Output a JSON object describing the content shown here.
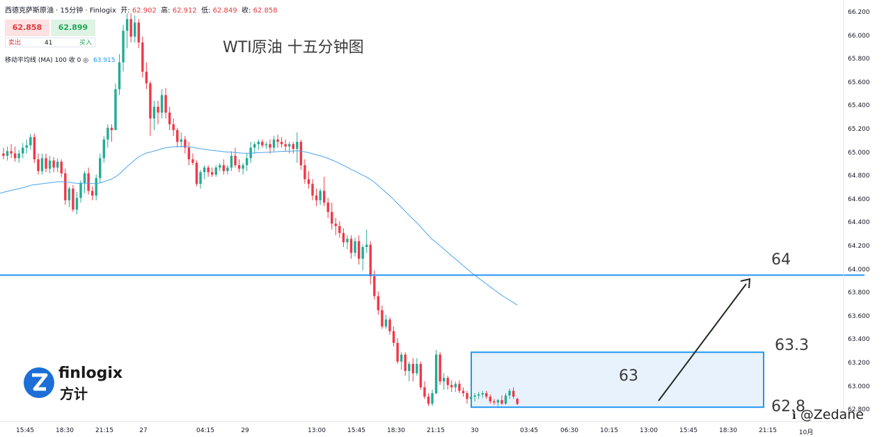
{
  "header": {
    "symbol": "西德克萨斯原油 · 15分钟 · Finlogix",
    "open_label": "开:",
    "open": "62.902",
    "high_label": "高:",
    "high": "62.912",
    "low_label": "低:",
    "low": "62.849",
    "close_label": "收:",
    "close": "62.858"
  },
  "trade": {
    "sell_price": "62.858",
    "buy_price": "62.899",
    "sell_label": "卖出",
    "buy_label": "买入",
    "quantity": "41"
  },
  "indicator": {
    "label": "移动平均线 (MA)",
    "params": "100 收 0",
    "value": "63.915"
  },
  "title": "WTI原油 十五分钟图",
  "annotations": {
    "level_64": "64",
    "level_633": "63.3",
    "level_63": "63",
    "level_628": "62.8"
  },
  "logo": {
    "name": "finlogix",
    "cn": "方计"
  },
  "watermark": "@Zedane",
  "colors": {
    "up": "#22ab94",
    "down": "#f23645",
    "ma": "#4aa3e8",
    "line": "#2196f3",
    "box_fill": "#e8f2fc"
  },
  "chart_data": {
    "type": "candlestick",
    "title": "WTI原油 十五分钟图",
    "y_ticks": [
      "66.200",
      "66.000",
      "65.800",
      "65.600",
      "65.400",
      "65.200",
      "65.000",
      "64.800",
      "64.600",
      "64.400",
      "64.200",
      "64.000",
      "63.800",
      "63.600",
      "63.400",
      "63.200",
      "63.000",
      "62.800"
    ],
    "x_ticks": [
      "15:45",
      "18:30",
      "21:15",
      "27",
      "04:15",
      "29",
      "13:00",
      "15:45",
      "18:30",
      "21:15",
      "30",
      "03:45",
      "06:30",
      "10:15",
      "13:00",
      "15:45",
      "18:30",
      "21:15",
      "10月"
    ],
    "horizontal_line": 63.96,
    "zone": {
      "top": 63.3,
      "bottom": 62.83
    },
    "moving_average": {
      "period": 100,
      "last": 63.915
    },
    "candles": [
      [
        65.0,
        65.05,
        64.95,
        64.98
      ],
      [
        64.98,
        65.06,
        64.94,
        65.02
      ],
      [
        65.02,
        65.08,
        64.96,
        65.0
      ],
      [
        65.0,
        65.06,
        64.93,
        64.96
      ],
      [
        64.96,
        65.03,
        64.92,
        65.0
      ],
      [
        65.0,
        65.09,
        64.96,
        65.05
      ],
      [
        65.05,
        65.12,
        65.0,
        65.07
      ],
      [
        65.07,
        65.17,
        65.03,
        65.14
      ],
      [
        65.14,
        65.17,
        64.92,
        64.95
      ],
      [
        64.95,
        65.0,
        64.82,
        64.85
      ],
      [
        64.85,
        65.0,
        64.82,
        64.96
      ],
      [
        64.96,
        65.0,
        64.84,
        64.87
      ],
      [
        64.87,
        64.98,
        64.83,
        64.94
      ],
      [
        64.94,
        64.97,
        64.84,
        64.88
      ],
      [
        64.88,
        64.96,
        64.84,
        64.93
      ],
      [
        64.93,
        64.95,
        64.8,
        64.83
      ],
      [
        64.83,
        64.87,
        64.56,
        64.6
      ],
      [
        64.6,
        64.72,
        64.54,
        64.7
      ],
      [
        64.7,
        64.73,
        64.5,
        64.52
      ],
      [
        64.52,
        64.67,
        64.48,
        64.62
      ],
      [
        64.62,
        64.77,
        64.58,
        64.75
      ],
      [
        64.75,
        64.85,
        64.66,
        64.83
      ],
      [
        64.83,
        64.88,
        64.65,
        64.68
      ],
      [
        64.68,
        64.72,
        64.6,
        64.64
      ],
      [
        64.64,
        64.82,
        64.6,
        64.79
      ],
      [
        64.79,
        65.0,
        64.75,
        64.96
      ],
      [
        64.96,
        65.15,
        64.92,
        65.12
      ],
      [
        65.12,
        65.25,
        65.05,
        65.22
      ],
      [
        65.22,
        65.25,
        65.1,
        65.2
      ],
      [
        65.2,
        65.6,
        65.2,
        65.55
      ],
      [
        65.55,
        65.85,
        65.5,
        65.78
      ],
      [
        65.78,
        66.1,
        65.7,
        66.05
      ],
      [
        66.05,
        66.2,
        65.9,
        66.15
      ],
      [
        66.15,
        66.2,
        65.95,
        66.0
      ],
      [
        66.0,
        66.18,
        65.95,
        66.12
      ],
      [
        66.12,
        66.15,
        65.9,
        65.95
      ],
      [
        65.95,
        66.0,
        65.65,
        65.7
      ],
      [
        65.7,
        65.78,
        65.55,
        65.6
      ],
      [
        65.6,
        65.62,
        65.15,
        65.3
      ],
      [
        65.3,
        65.45,
        65.2,
        65.4
      ],
      [
        65.4,
        65.45,
        65.25,
        65.35
      ],
      [
        65.35,
        65.55,
        65.3,
        65.5
      ],
      [
        65.5,
        65.56,
        65.3,
        65.35
      ],
      [
        65.35,
        65.4,
        65.2,
        65.25
      ],
      [
        65.25,
        65.3,
        65.15,
        65.2
      ],
      [
        65.2,
        65.22,
        65.05,
        65.1
      ],
      [
        65.1,
        65.18,
        65.05,
        65.12
      ],
      [
        65.12,
        65.15,
        65.0,
        65.05
      ],
      [
        65.05,
        65.1,
        64.9,
        64.95
      ],
      [
        64.95,
        65.0,
        64.9,
        64.92
      ],
      [
        64.92,
        64.94,
        64.72,
        64.74
      ],
      [
        64.74,
        64.86,
        64.7,
        64.84
      ],
      [
        64.84,
        64.9,
        64.78,
        64.88
      ],
      [
        64.88,
        64.9,
        64.8,
        64.84
      ],
      [
        64.84,
        64.88,
        64.8,
        64.82
      ],
      [
        64.82,
        64.9,
        64.8,
        64.88
      ],
      [
        64.88,
        64.92,
        64.85,
        64.9
      ],
      [
        64.9,
        64.95,
        64.82,
        64.85
      ],
      [
        64.85,
        64.9,
        64.82,
        64.88
      ],
      [
        64.88,
        65.02,
        64.85,
        64.98
      ],
      [
        64.98,
        65.05,
        64.88,
        64.9
      ],
      [
        64.9,
        64.95,
        64.84,
        64.87
      ],
      [
        64.87,
        64.92,
        64.82,
        64.9
      ],
      [
        64.9,
        65.0,
        64.85,
        64.96
      ],
      [
        64.96,
        65.1,
        64.92,
        65.05
      ],
      [
        65.05,
        65.1,
        65.0,
        65.08
      ],
      [
        65.08,
        65.12,
        65.03,
        65.1
      ],
      [
        65.1,
        65.12,
        65.05,
        65.07
      ],
      [
        65.07,
        65.1,
        65.04,
        65.08
      ],
      [
        65.08,
        65.12,
        65.0,
        65.05
      ],
      [
        65.05,
        65.15,
        65.02,
        65.12
      ],
      [
        65.12,
        65.16,
        65.05,
        65.1
      ],
      [
        65.1,
        65.14,
        65.05,
        65.08
      ],
      [
        65.08,
        65.12,
        65.02,
        65.06
      ],
      [
        65.06,
        65.1,
        65.0,
        65.08
      ],
      [
        65.08,
        65.1,
        65.0,
        65.04
      ],
      [
        65.04,
        65.18,
        64.92,
        65.1
      ],
      [
        65.1,
        65.12,
        64.86,
        64.9
      ],
      [
        64.9,
        64.95,
        64.74,
        64.78
      ],
      [
        64.78,
        64.85,
        64.7,
        64.74
      ],
      [
        64.74,
        64.78,
        64.6,
        64.64
      ],
      [
        64.64,
        64.7,
        64.55,
        64.6
      ],
      [
        64.6,
        64.7,
        64.56,
        64.68
      ],
      [
        64.68,
        64.8,
        64.55,
        64.58
      ],
      [
        64.58,
        64.62,
        64.45,
        64.5
      ],
      [
        64.5,
        64.58,
        64.35,
        64.4
      ],
      [
        64.4,
        64.45,
        64.3,
        64.38
      ],
      [
        64.38,
        64.42,
        64.28,
        64.32
      ],
      [
        64.32,
        64.36,
        64.2,
        64.24
      ],
      [
        64.24,
        64.3,
        64.18,
        64.27
      ],
      [
        64.27,
        64.3,
        64.1,
        64.15
      ],
      [
        64.15,
        64.28,
        64.12,
        64.25
      ],
      [
        64.25,
        64.3,
        64.05,
        64.1
      ],
      [
        64.1,
        64.22,
        64.0,
        64.2
      ],
      [
        64.2,
        64.35,
        64.15,
        64.22
      ],
      [
        64.22,
        64.25,
        63.88,
        63.95
      ],
      [
        63.95,
        64.0,
        63.75,
        63.78
      ],
      [
        63.78,
        63.82,
        63.62,
        63.66
      ],
      [
        63.66,
        63.7,
        63.5,
        63.52
      ],
      [
        63.52,
        63.62,
        63.5,
        63.58
      ],
      [
        63.58,
        63.6,
        63.45,
        63.48
      ],
      [
        63.48,
        63.52,
        63.35,
        63.38
      ],
      [
        63.38,
        63.42,
        63.2,
        63.22
      ],
      [
        63.22,
        63.3,
        63.15,
        63.28
      ],
      [
        63.28,
        63.3,
        63.1,
        63.14
      ],
      [
        63.14,
        63.22,
        63.05,
        63.2
      ],
      [
        63.2,
        63.25,
        63.05,
        63.12
      ],
      [
        63.12,
        63.25,
        63.1,
        63.2
      ],
      [
        63.2,
        63.22,
        62.98,
        63.0
      ],
      [
        63.0,
        63.05,
        62.9,
        62.92
      ],
      [
        62.92,
        62.95,
        62.84,
        62.86
      ],
      [
        62.86,
        62.98,
        62.84,
        62.95
      ],
      [
        62.95,
        63.32,
        62.94,
        63.28
      ],
      [
        63.28,
        63.3,
        63.02,
        63.05
      ],
      [
        63.05,
        63.12,
        62.98,
        63.08
      ],
      [
        63.08,
        63.1,
        62.98,
        63.02
      ],
      [
        63.02,
        63.06,
        62.96,
        63.0
      ],
      [
        63.0,
        63.05,
        62.96,
        63.03
      ],
      [
        63.03,
        63.06,
        62.95,
        62.97
      ],
      [
        62.97,
        63.0,
        62.92,
        62.95
      ],
      [
        62.95,
        62.97,
        62.86,
        62.9
      ],
      [
        62.9,
        62.94,
        62.86,
        62.92
      ],
      [
        62.92,
        62.95,
        62.88,
        62.93
      ],
      [
        62.93,
        62.96,
        62.9,
        62.94
      ],
      [
        62.94,
        62.97,
        62.91,
        62.95
      ],
      [
        62.95,
        62.97,
        62.9,
        62.92
      ],
      [
        62.92,
        62.94,
        62.86,
        62.88
      ],
      [
        62.88,
        62.9,
        62.85,
        62.87
      ],
      [
        62.87,
        62.9,
        62.84,
        62.89
      ],
      [
        62.89,
        62.93,
        62.85,
        62.86
      ],
      [
        62.86,
        62.95,
        62.85,
        62.93
      ],
      [
        62.93,
        62.99,
        62.9,
        62.97
      ],
      [
        62.97,
        63.0,
        62.9,
        62.92
      ],
      [
        62.902,
        62.912,
        62.849,
        62.858
      ]
    ]
  }
}
